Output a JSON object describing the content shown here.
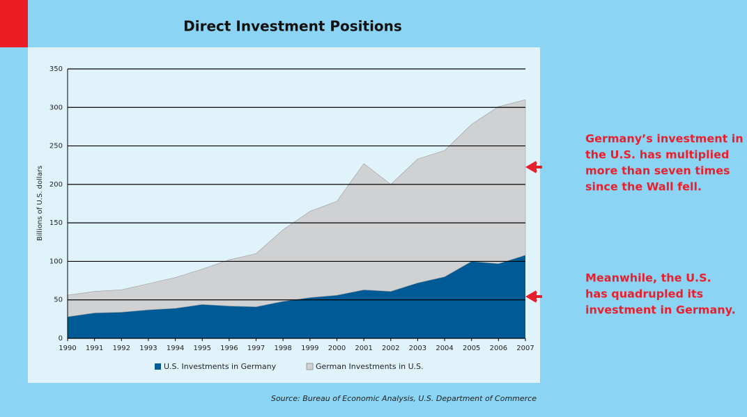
{
  "chart_data": {
    "type": "stacked-area",
    "title": "Direct Investment Positions",
    "y_label": "Billions of U.S. dollars",
    "source": "Source: Bureau of Economic Analysis, U.S. Department of Commerce",
    "categories": [
      "1990",
      "1991",
      "1992",
      "1993",
      "1994",
      "1995",
      "1996",
      "1997",
      "1998",
      "1999",
      "2000",
      "2001",
      "2002",
      "2003",
      "2004",
      "2005",
      "2006",
      "2007"
    ],
    "series": [
      {
        "name": "U.S. Investments in Germany",
        "color": "#005a96",
        "values": [
          28,
          33,
          34,
          37,
          39,
          44,
          42,
          41,
          48,
          53,
          56,
          63,
          61,
          72,
          80,
          100,
          97,
          108
        ]
      },
      {
        "name": "German Investments in U.S.",
        "color": "#d0d1d3",
        "values": [
          28,
          28,
          29,
          34,
          40,
          46,
          60,
          69,
          93,
          112,
          122,
          164,
          139,
          161,
          164,
          178,
          204,
          202
        ]
      }
    ],
    "ylim": [
      0,
      350
    ],
    "yticks": [
      0,
      50,
      100,
      150,
      200,
      250,
      300,
      350
    ],
    "grid": true,
    "annotations": [
      {
        "lines": [
          "Germany’s investment in",
          "the U.S. has multiplied",
          "more than seven times",
          "since the Wall fell."
        ]
      },
      {
        "lines": [
          "Meanwhile, the U.S.",
          "has quadrupled its",
          "investment in Germany."
        ]
      }
    ]
  }
}
